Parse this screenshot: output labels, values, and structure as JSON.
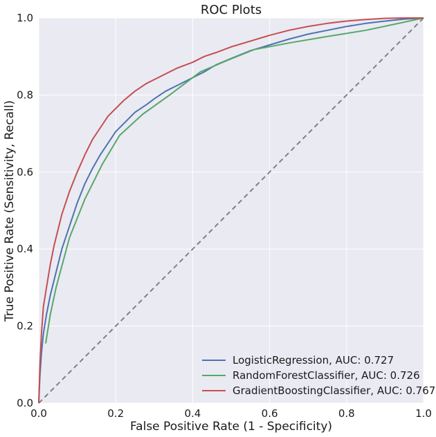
{
  "chart_data": {
    "type": "line",
    "title": "ROC Plots",
    "xlabel": "False Positive Rate (1 - Specificity)",
    "ylabel": "True Positive Rate (Sensitivity, Recall)",
    "xlim": [
      0.0,
      1.0
    ],
    "ylim": [
      0.0,
      1.0
    ],
    "xticks": [
      "0.0",
      "0.2",
      "0.4",
      "0.6",
      "0.8",
      "1.0"
    ],
    "yticks": [
      "0.0",
      "0.2",
      "0.4",
      "0.6",
      "0.8",
      "1.0"
    ],
    "grid": true,
    "legend_position": "lower-right",
    "colors": {
      "background": "#eaeaf2",
      "grid": "#ffffff",
      "reference": "#808080"
    },
    "reference_line": {
      "x": [
        0.0,
        1.0
      ],
      "y": [
        0.0,
        1.0
      ],
      "style": "dashed"
    },
    "series": [
      {
        "name": "LogisticRegression, AUC: 0.727",
        "color": "#4c72b0",
        "x": [
          0.0,
          0.003,
          0.007,
          0.012,
          0.02,
          0.03,
          0.04,
          0.05,
          0.06,
          0.07,
          0.08,
          0.1,
          0.12,
          0.14,
          0.16,
          0.18,
          0.2,
          0.22,
          0.25,
          0.28,
          0.3,
          0.33,
          0.36,
          0.4,
          0.43,
          0.46,
          0.5,
          0.55,
          0.6,
          0.65,
          0.7,
          0.75,
          0.8,
          0.85,
          0.9,
          0.95,
          1.0
        ],
        "y": [
          0.0,
          0.07,
          0.13,
          0.18,
          0.23,
          0.28,
          0.32,
          0.36,
          0.4,
          0.43,
          0.46,
          0.52,
          0.57,
          0.61,
          0.645,
          0.675,
          0.705,
          0.725,
          0.755,
          0.775,
          0.79,
          0.81,
          0.825,
          0.845,
          0.86,
          0.878,
          0.895,
          0.915,
          0.93,
          0.945,
          0.958,
          0.968,
          0.978,
          0.986,
          0.992,
          0.997,
          1.0
        ]
      },
      {
        "name": "RandomForestClassifier, AUC: 0.726",
        "color": "#55a868",
        "x": [
          0.018,
          0.03,
          0.045,
          0.08,
          0.12,
          0.165,
          0.21,
          0.27,
          0.34,
          0.42,
          0.49,
          0.56,
          0.65,
          0.75,
          0.85,
          0.93,
          1.0
        ],
        "y": [
          0.155,
          0.23,
          0.3,
          0.43,
          0.53,
          0.62,
          0.695,
          0.75,
          0.8,
          0.86,
          0.89,
          0.918,
          0.935,
          0.952,
          0.968,
          0.985,
          1.0
        ]
      },
      {
        "name": "GradientBoostingClassifier, AUC: 0.767",
        "color": "#c44e52",
        "x": [
          0.0,
          0.003,
          0.007,
          0.012,
          0.02,
          0.03,
          0.04,
          0.05,
          0.06,
          0.07,
          0.08,
          0.1,
          0.12,
          0.14,
          0.16,
          0.18,
          0.2,
          0.22,
          0.25,
          0.28,
          0.3,
          0.33,
          0.36,
          0.4,
          0.43,
          0.46,
          0.5,
          0.55,
          0.6,
          0.65,
          0.7,
          0.75,
          0.8,
          0.85,
          0.9,
          0.95,
          1.0
        ],
        "y": [
          0.0,
          0.1,
          0.18,
          0.25,
          0.3,
          0.36,
          0.41,
          0.45,
          0.49,
          0.52,
          0.55,
          0.6,
          0.645,
          0.685,
          0.715,
          0.745,
          0.765,
          0.785,
          0.81,
          0.83,
          0.84,
          0.855,
          0.87,
          0.885,
          0.9,
          0.91,
          0.925,
          0.94,
          0.955,
          0.968,
          0.978,
          0.986,
          0.992,
          0.996,
          0.999,
          1.0,
          1.0
        ]
      }
    ]
  }
}
